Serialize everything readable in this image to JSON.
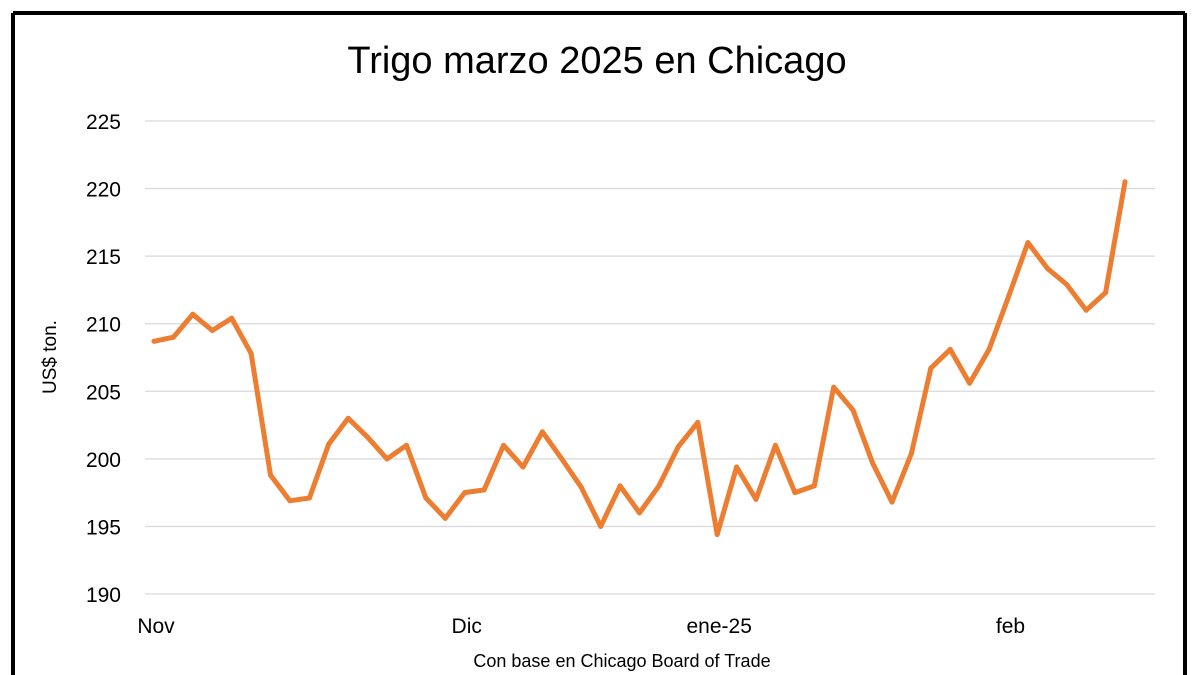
{
  "chart_data": {
    "type": "line",
    "title": "Trigo marzo 2025 en Chicago",
    "ylabel": "US$ ton.",
    "source_note": "Con base en Chicago Board of Trade",
    "ylim": [
      190,
      225
    ],
    "yticks": [
      190,
      195,
      200,
      205,
      210,
      215,
      220,
      225
    ],
    "xticks": [
      {
        "label": "Nov",
        "index": 0
      },
      {
        "label": "Dic",
        "index": 16
      },
      {
        "label": "ene-25",
        "index": 29
      },
      {
        "label": "feb",
        "index": 44
      }
    ],
    "grid": true,
    "legend": "none",
    "series": [
      {
        "color": "#ED7D31",
        "values": [
          208.7,
          209.0,
          210.7,
          209.5,
          210.4,
          207.8,
          198.8,
          196.9,
          197.1,
          201.1,
          203.0,
          201.6,
          200.0,
          201.0,
          197.1,
          195.6,
          197.5,
          197.7,
          201.0,
          199.4,
          202.0,
          200.0,
          197.9,
          195.0,
          198.0,
          196.0,
          198.0,
          200.9,
          202.7,
          194.4,
          199.4,
          197.0,
          201.0,
          197.5,
          198.0,
          205.3,
          203.6,
          199.7,
          196.8,
          200.4,
          206.7,
          208.1,
          205.6,
          208.1,
          212.0,
          216.0,
          214.1,
          212.9,
          211.0,
          212.3,
          220.5
        ]
      }
    ]
  }
}
